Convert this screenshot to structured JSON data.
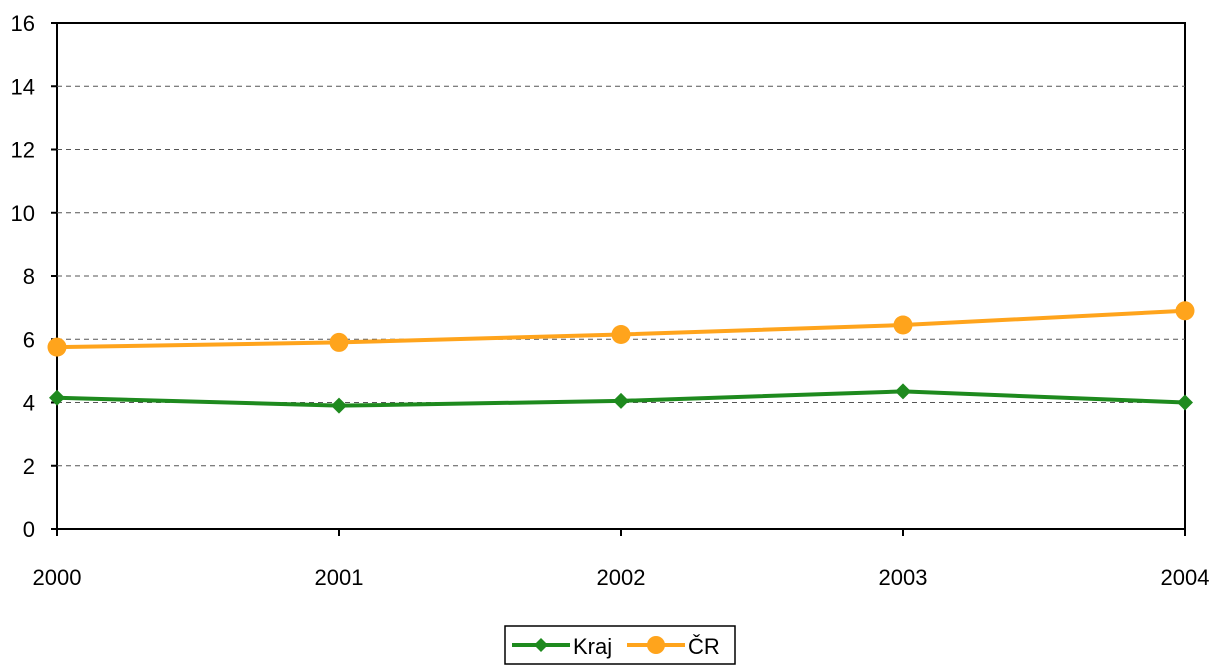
{
  "chart_data": {
    "type": "line",
    "title": "",
    "xlabel": "",
    "ylabel": "",
    "categories": [
      "2000",
      "2001",
      "2002",
      "2003",
      "2004"
    ],
    "ylim": [
      0,
      16
    ],
    "yticks": [
      "0",
      "2",
      "4",
      "6",
      "8",
      "10",
      "12",
      "14",
      "16"
    ],
    "grid": "horizontal dashed",
    "legend_position": "bottom-center",
    "series": [
      {
        "name": "Kraj",
        "color": "#1e8a1e",
        "marker": "diamond",
        "values": [
          4.15,
          3.9,
          4.05,
          4.35,
          4.0
        ]
      },
      {
        "name": "ČR",
        "color": "#ffa41c",
        "marker": "circle",
        "values": [
          5.75,
          5.9,
          6.15,
          6.45,
          6.9
        ]
      }
    ]
  }
}
